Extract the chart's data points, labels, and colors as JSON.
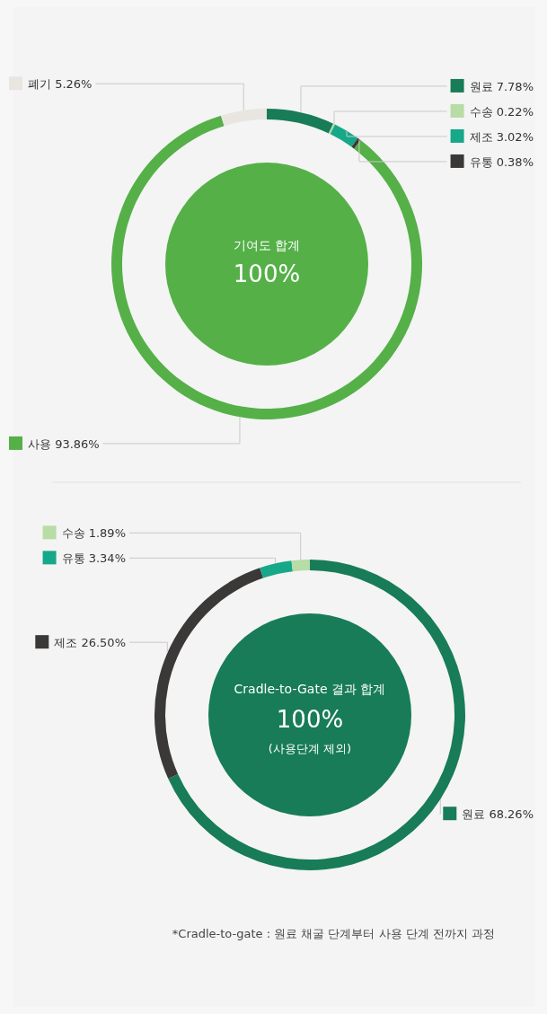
{
  "chart_data": [
    {
      "type": "donut",
      "title": "기여도 합계",
      "annotations": [
        "100%"
      ],
      "categories": [
        "원료",
        "수송",
        "제조",
        "유통",
        "사용",
        "폐기"
      ],
      "values": [
        7.78,
        0.22,
        3.02,
        0.38,
        93.86,
        5.26
      ],
      "value_labels": [
        "7.78%",
        "0.22%",
        "3.02%",
        "0.38%",
        "93.86%",
        "5.26%"
      ],
      "colors": [
        "#177c57",
        "#b7dca5",
        "#16a889",
        "#3b3838",
        "#55b048",
        "#e9e6e2"
      ],
      "legend": "right"
    },
    {
      "type": "donut",
      "title": "Cradle-to-Gate 결과 합계",
      "subtitle": "(사용단계 제외)",
      "annotations": [
        "100%",
        "*Cradle-to-gate : 원료 채굴 단계부터 사용 단계 전까지 과정"
      ],
      "categories": [
        "원료",
        "제조",
        "유통",
        "수송"
      ],
      "values": [
        68.26,
        26.5,
        3.34,
        1.89
      ],
      "value_labels": [
        "68.26%",
        "26.50%",
        "3.34%",
        "1.89%"
      ],
      "colors": [
        "#177c57",
        "#3b3838",
        "#16a889",
        "#b7dca5"
      ],
      "legend": "top left"
    }
  ]
}
